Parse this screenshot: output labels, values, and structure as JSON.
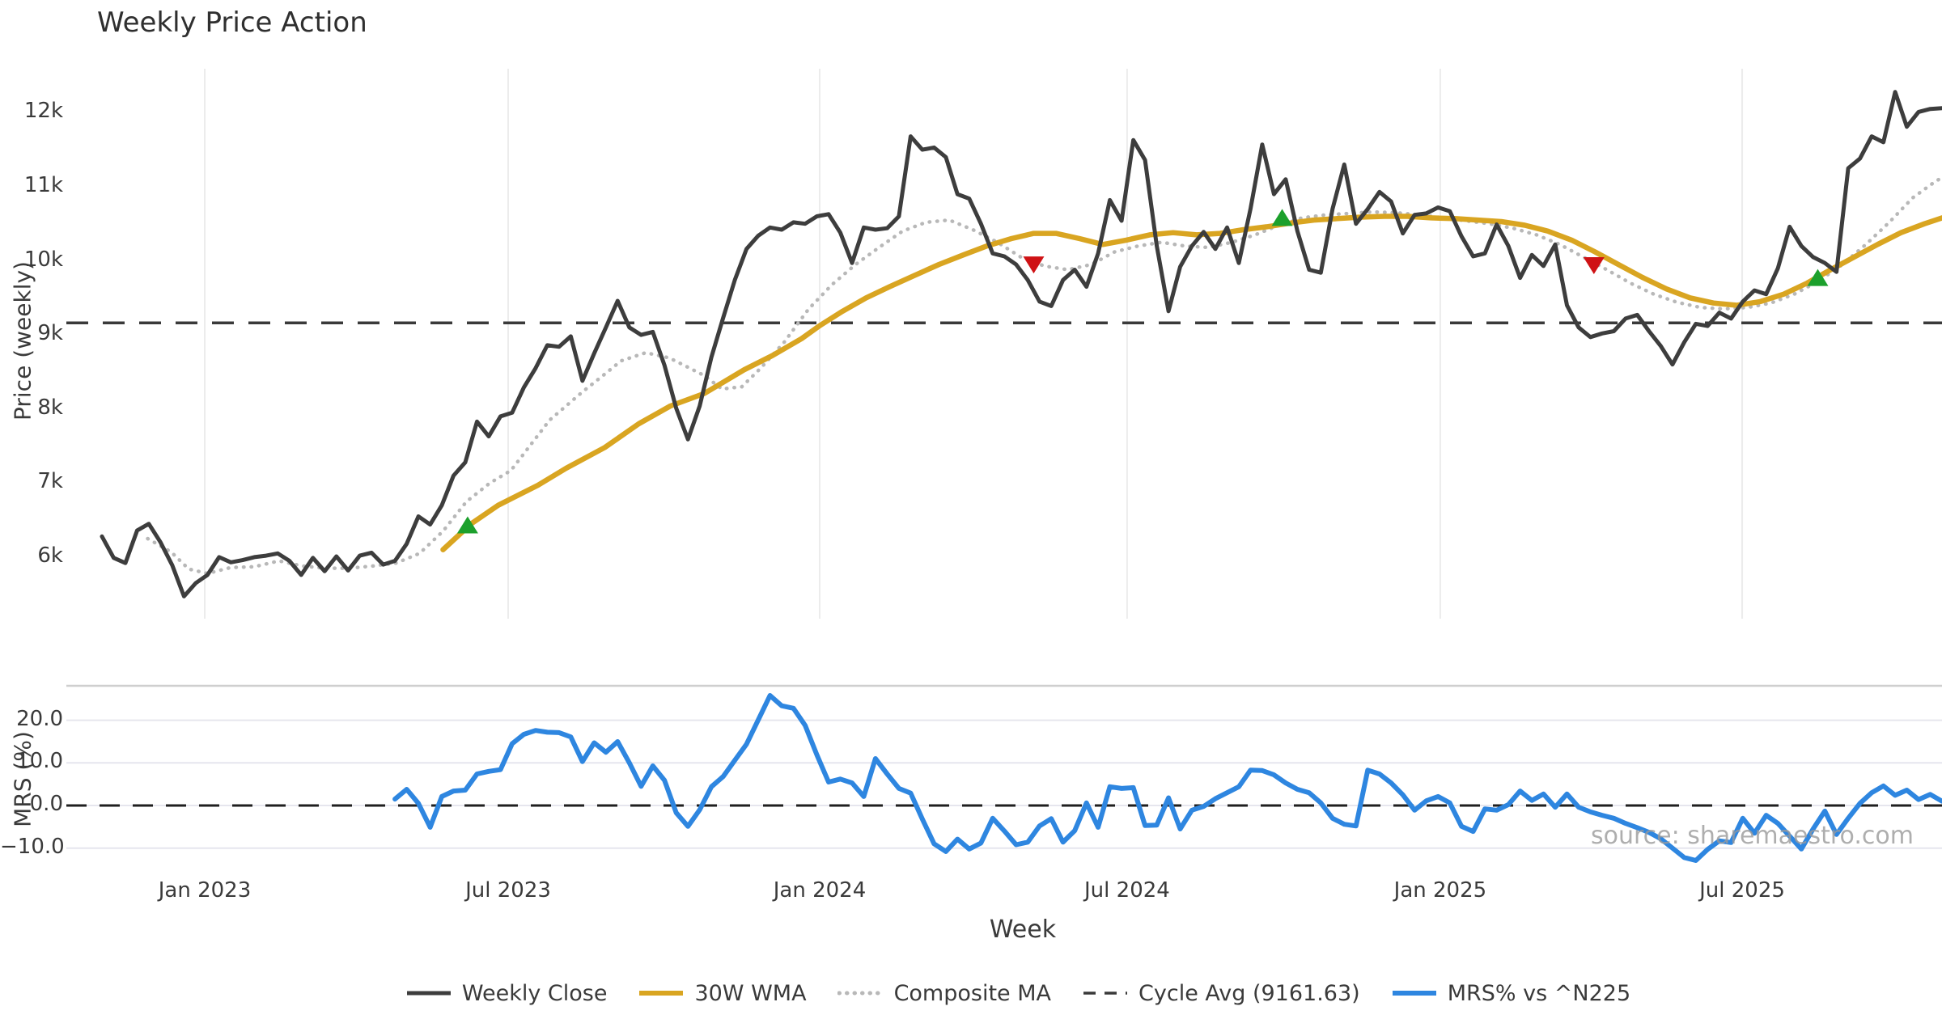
{
  "title": "Weekly Price Action",
  "watermark": "source: sharemaestro.com",
  "colors": {
    "close": "#3d3d3d",
    "wma": "#d9a521",
    "composite": "#b8b8b8",
    "cycle": "#3a3a3a",
    "mrs": "#2e86e0",
    "marker_up": "#1ca02c",
    "marker_down": "#cf1215",
    "grid_v": "#ececec",
    "grid_h": "#e6e6ee",
    "panel_border": "#cfcfcf",
    "zero_dash": "#1f1f1f",
    "text": "#3a3a3a"
  },
  "legend": [
    {
      "label": "Weekly Close",
      "style": "solid",
      "color": "#3d3d3d",
      "width": 5
    },
    {
      "label": "30W WMA",
      "style": "solid",
      "color": "#d9a521",
      "width": 6
    },
    {
      "label": "Composite MA",
      "style": "dotted",
      "color": "#b8b8b8",
      "width": 5
    },
    {
      "label": "Cycle Avg (9161.63)",
      "style": "dashed",
      "color": "#3a3a3a",
      "width": 3.5
    },
    {
      "label": "MRS% vs ^N225",
      "style": "solid",
      "color": "#2e86e0",
      "width": 6
    }
  ],
  "chart_data": {
    "type": "line",
    "x_axis": {
      "label": "Week",
      "ticks": [
        {
          "i": 8.77,
          "label": "Jan 2023"
        },
        {
          "i": 34.66,
          "label": "Jul 2023"
        },
        {
          "i": 61.24,
          "label": "Jan 2024"
        },
        {
          "i": 87.47,
          "label": "Jul 2024"
        },
        {
          "i": 114.19,
          "label": "Jan 2025"
        },
        {
          "i": 139.95,
          "label": "Jul 2025"
        }
      ]
    },
    "price_panel": {
      "ylabel": "Price (weekly)",
      "ylim": [
        5150,
        12600
      ],
      "yticks": [
        {
          "v": 12000,
          "label": "12k"
        },
        {
          "v": 11000,
          "label": "11k"
        },
        {
          "v": 10000,
          "label": "10k"
        },
        {
          "v": 9000,
          "label": "9k"
        },
        {
          "v": 8000,
          "label": "8k"
        },
        {
          "v": 7000,
          "label": "7k"
        },
        {
          "v": 6000,
          "label": "6k"
        }
      ],
      "cycle_avg": 9161.63,
      "weekly_close": {
        "start_i": 0,
        "step": 1,
        "values": [
          6280,
          5990,
          5920,
          6360,
          6450,
          6200,
          5890,
          5470,
          5650,
          5760,
          6000,
          5930,
          5960,
          6000,
          6020,
          6050,
          5950,
          5760,
          5990,
          5810,
          6010,
          5820,
          6020,
          6060,
          5900,
          5950,
          6180,
          6550,
          6440,
          6700,
          7100,
          7280,
          7830,
          7630,
          7900,
          7950,
          8290,
          8550,
          8860,
          8840,
          8980,
          8380,
          8750,
          9100,
          9460,
          9100,
          9000,
          9040,
          8590,
          8010,
          7590,
          8040,
          8700,
          9230,
          9740,
          10160,
          10340,
          10450,
          10420,
          10520,
          10500,
          10600,
          10630,
          10380,
          9970,
          10450,
          10420,
          10440,
          10600,
          11680,
          11500,
          11530,
          11400,
          10900,
          10840,
          10500,
          10100,
          10060,
          9950,
          9740,
          9450,
          9390,
          9740,
          9880,
          9650,
          10100,
          10820,
          10540,
          11630,
          11360,
          10200,
          9320,
          9920,
          10200,
          10390,
          10160,
          10450,
          9970,
          10700,
          11570,
          10900,
          11100,
          10400,
          9880,
          9840,
          10700,
          11300,
          10500,
          10700,
          10930,
          10800,
          10370,
          10620,
          10640,
          10720,
          10670,
          10330,
          10060,
          10100,
          10490,
          10200,
          9770,
          10080,
          9930,
          10220,
          9400,
          9100,
          8970,
          9020,
          9050,
          9220,
          9270,
          9050,
          8850,
          8600,
          8900,
          9150,
          9120,
          9300,
          9220,
          9450,
          9600,
          9550,
          9900,
          10460,
          10200,
          10050,
          9970,
          9850,
          11250,
          11380,
          11680,
          11600,
          12280,
          11810,
          12010,
          12050,
          12060
        ]
      },
      "wma_30w": {
        "pairs": [
          [
            29.1,
            6100
          ],
          [
            31.5,
            6450
          ],
          [
            33.8,
            6700
          ],
          [
            37.2,
            6970
          ],
          [
            39.6,
            7200
          ],
          [
            42.9,
            7480
          ],
          [
            45.8,
            7800
          ],
          [
            48.5,
            8040
          ],
          [
            51.4,
            8210
          ],
          [
            54.8,
            8530
          ],
          [
            57.2,
            8720
          ],
          [
            59.7,
            8950
          ],
          [
            61.2,
            9120
          ],
          [
            63.2,
            9320
          ],
          [
            65.2,
            9500
          ],
          [
            67.2,
            9650
          ],
          [
            69.3,
            9800
          ],
          [
            71.4,
            9950
          ],
          [
            73.5,
            10080
          ],
          [
            75.5,
            10200
          ],
          [
            77.6,
            10300
          ],
          [
            79.5,
            10370
          ],
          [
            81.4,
            10370
          ],
          [
            83.4,
            10300
          ],
          [
            85.4,
            10220
          ],
          [
            87.4,
            10280
          ],
          [
            89.4,
            10350
          ],
          [
            91.4,
            10380
          ],
          [
            93.4,
            10350
          ],
          [
            95.4,
            10370
          ],
          [
            97.4,
            10420
          ],
          [
            99.4,
            10460
          ],
          [
            101.4,
            10510
          ],
          [
            103.4,
            10550
          ],
          [
            105.4,
            10570
          ],
          [
            107.4,
            10590
          ],
          [
            109.4,
            10600
          ],
          [
            111.4,
            10600
          ],
          [
            113.4,
            10580
          ],
          [
            115.4,
            10570
          ],
          [
            117.4,
            10550
          ],
          [
            119.4,
            10530
          ],
          [
            121.4,
            10480
          ],
          [
            123.4,
            10400
          ],
          [
            125.4,
            10280
          ],
          [
            127.4,
            10120
          ],
          [
            129.4,
            9950
          ],
          [
            131.4,
            9780
          ],
          [
            133.5,
            9620
          ],
          [
            135.5,
            9500
          ],
          [
            137.5,
            9430
          ],
          [
            139.5,
            9400
          ],
          [
            141.5,
            9450
          ],
          [
            143.5,
            9550
          ],
          [
            145.5,
            9700
          ],
          [
            147.5,
            9880
          ],
          [
            149.5,
            10050
          ],
          [
            151.5,
            10220
          ],
          [
            153.5,
            10380
          ],
          [
            155.5,
            10500
          ],
          [
            157,
            10580
          ]
        ]
      },
      "composite_ma": {
        "pairs": [
          [
            3.9,
            6250
          ],
          [
            5.9,
            6070
          ],
          [
            7.4,
            5840
          ],
          [
            9,
            5780
          ],
          [
            11,
            5860
          ],
          [
            13,
            5870
          ],
          [
            15.1,
            5950
          ],
          [
            17.1,
            5880
          ],
          [
            19.1,
            5850
          ],
          [
            21.1,
            5850
          ],
          [
            23.1,
            5880
          ],
          [
            25.1,
            5920
          ],
          [
            27.1,
            6050
          ],
          [
            29.1,
            6350
          ],
          [
            31.1,
            6750
          ],
          [
            33.1,
            7000
          ],
          [
            34.9,
            7170
          ],
          [
            38.2,
            7850
          ],
          [
            41,
            8230
          ],
          [
            42.9,
            8470
          ],
          [
            44.3,
            8650
          ],
          [
            46.4,
            8760
          ],
          [
            48.4,
            8690
          ],
          [
            49.8,
            8580
          ],
          [
            51.4,
            8450
          ],
          [
            52.9,
            8270
          ],
          [
            54.6,
            8300
          ],
          [
            56.2,
            8550
          ],
          [
            58.2,
            8900
          ],
          [
            60.3,
            9350
          ],
          [
            62.3,
            9680
          ],
          [
            64.3,
            9950
          ],
          [
            66.3,
            10180
          ],
          [
            68.3,
            10400
          ],
          [
            70.3,
            10520
          ],
          [
            72.3,
            10550
          ],
          [
            74.3,
            10420
          ],
          [
            76.4,
            10250
          ],
          [
            78.4,
            10050
          ],
          [
            80.4,
            9930
          ],
          [
            82.4,
            9880
          ],
          [
            84.4,
            9950
          ],
          [
            86.4,
            10120
          ],
          [
            88.4,
            10200
          ],
          [
            90.4,
            10250
          ],
          [
            92.4,
            10200
          ],
          [
            94.4,
            10180
          ],
          [
            96.4,
            10250
          ],
          [
            98.4,
            10350
          ],
          [
            100.4,
            10480
          ],
          [
            102.4,
            10580
          ],
          [
            104.4,
            10620
          ],
          [
            106.4,
            10640
          ],
          [
            108.4,
            10660
          ],
          [
            110.4,
            10650
          ],
          [
            112.4,
            10620
          ],
          [
            114.4,
            10580
          ],
          [
            116.4,
            10540
          ],
          [
            118.4,
            10500
          ],
          [
            120.4,
            10440
          ],
          [
            122.4,
            10350
          ],
          [
            124.4,
            10220
          ],
          [
            126.4,
            10050
          ],
          [
            128.4,
            9880
          ],
          [
            130.4,
            9700
          ],
          [
            132.4,
            9550
          ],
          [
            134.4,
            9440
          ],
          [
            136.4,
            9370
          ],
          [
            138.4,
            9350
          ],
          [
            140.4,
            9370
          ],
          [
            142.4,
            9430
          ],
          [
            144.4,
            9550
          ],
          [
            146.4,
            9720
          ],
          [
            148.5,
            9950
          ],
          [
            150.5,
            10220
          ],
          [
            152.5,
            10520
          ],
          [
            154.5,
            10850
          ],
          [
            156.5,
            11080
          ],
          [
            157,
            11120
          ]
        ]
      },
      "markers_up": [
        {
          "i": 31.2,
          "v": 6430
        },
        {
          "i": 100.7,
          "v": 10580
        },
        {
          "i": 146.4,
          "v": 9770
        }
      ],
      "markers_down": [
        {
          "i": 79.5,
          "v": 9950
        },
        {
          "i": 127.3,
          "v": 9940
        }
      ]
    },
    "mrs_panel": {
      "ylabel": "MRS (%)",
      "ylim": [
        -23,
        28
      ],
      "yticks": [
        {
          "v": 20,
          "label": "20.0"
        },
        {
          "v": 10,
          "label": "10.0"
        },
        {
          "v": 0,
          "label": "0.0"
        },
        {
          "v": -10,
          "label": "−10.0"
        }
      ],
      "zero_line": 0,
      "mrs": {
        "start_i": 25,
        "step": 1,
        "values": [
          1.5,
          3.8,
          0.5,
          -5.1,
          2.1,
          3.4,
          3.6,
          7.4,
          8.0,
          8.4,
          14.5,
          16.7,
          17.6,
          17.2,
          17.1,
          16.1,
          10.3,
          14.7,
          12.5,
          15.0,
          10.0,
          4.5,
          9.3,
          5.9,
          -1.7,
          -4.9,
          -1.0,
          4.4,
          6.8,
          10.6,
          14.4,
          20.1,
          25.8,
          23.4,
          22.8,
          18.8,
          11.9,
          5.5,
          6.2,
          5.3,
          2.1,
          11.0,
          7.4,
          4.0,
          2.9,
          -3.2,
          -9.0,
          -10.8,
          -7.9,
          -10.2,
          -8.8,
          -3.0,
          -6.0,
          -9.2,
          -8.6,
          -4.8,
          -3.1,
          -8.6,
          -5.9,
          0.6,
          -5.1,
          4.4,
          4.0,
          4.2,
          -4.7,
          -4.6,
          1.8,
          -5.5,
          -1.1,
          -0.2,
          1.6,
          3.0,
          4.4,
          8.3,
          8.2,
          7.2,
          5.3,
          3.8,
          3.0,
          0.6,
          -3.0,
          -4.4,
          -4.8,
          8.3,
          7.4,
          5.3,
          2.5,
          -1.1,
          1.1,
          2.1,
          0.6,
          -4.9,
          -6.1,
          -0.8,
          -1.1,
          0.2,
          3.4,
          1.2,
          2.7,
          -0.4,
          2.7,
          -0.4,
          -1.5,
          -2.3,
          -3.0,
          -4.2,
          -5.2,
          -6.3,
          -7.8,
          -10.0,
          -12.2,
          -12.9,
          -10.3,
          -8.3,
          -8.7,
          -3.0,
          -6.5,
          -2.3,
          -4.2,
          -7.2,
          -10.2,
          -5.5,
          -1.3,
          -6.8,
          -3.0,
          0.5,
          3.0,
          4.6,
          2.4,
          3.6,
          1.4,
          2.6,
          1.0
        ]
      }
    }
  }
}
